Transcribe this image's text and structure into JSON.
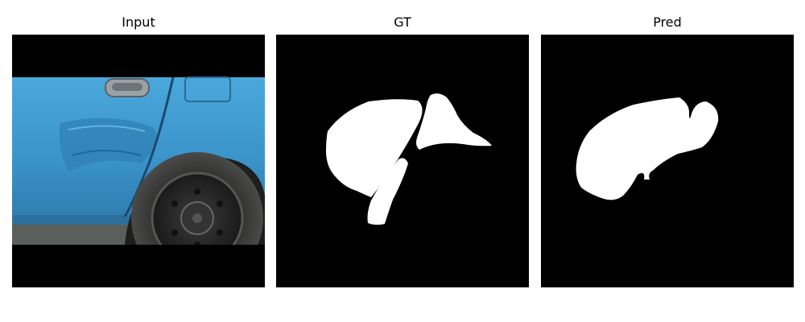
{
  "panels": {
    "input": {
      "title": "Input"
    },
    "gt": {
      "title": "GT"
    },
    "pred": {
      "title": "Pred"
    }
  },
  "colors": {
    "background": "#ffffff",
    "image_border_black": "#000000",
    "car_body_blue": "#3e98cf",
    "mask_foreground": "#ffffff",
    "mask_background": "#000000"
  }
}
